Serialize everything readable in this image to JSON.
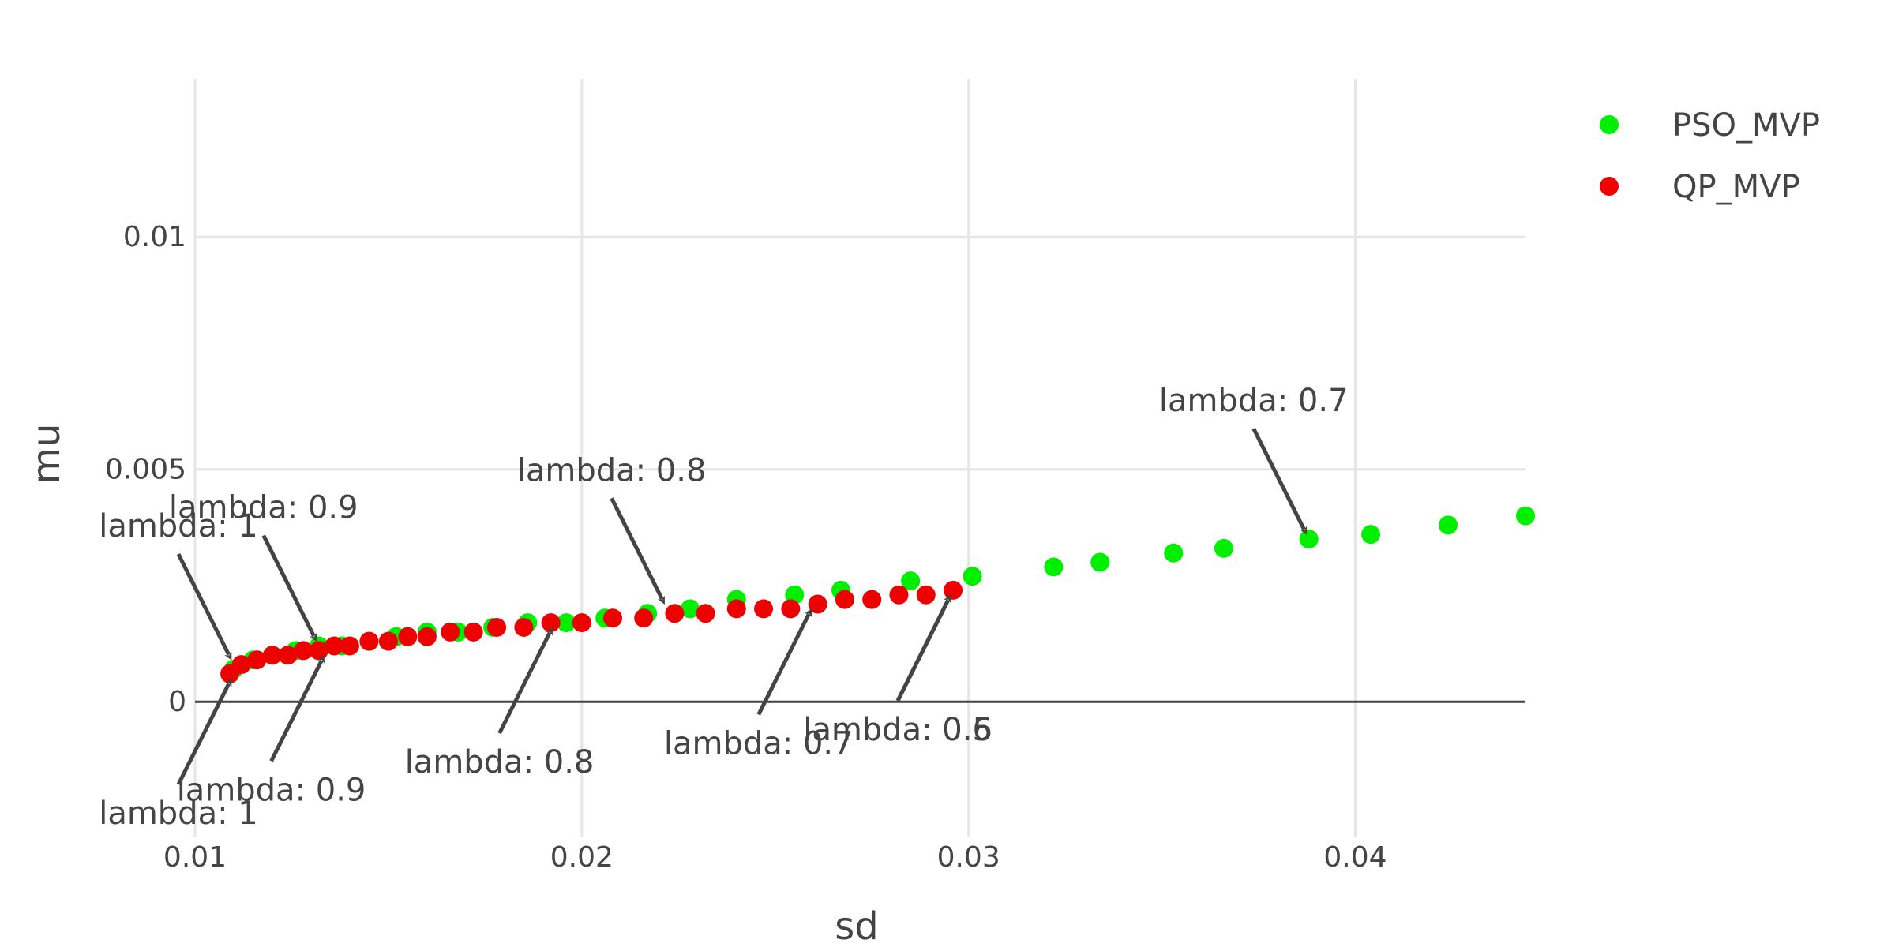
{
  "chart_data": {
    "type": "scatter",
    "xlabel": "sd",
    "ylabel": "mu",
    "xlim": [
      0.01,
      0.0444
    ],
    "ylim": [
      -0.0029,
      0.0134
    ],
    "x_ticks": [
      0.01,
      0.02,
      0.03,
      0.04
    ],
    "x_tick_labels": [
      "0.01",
      "0.02",
      "0.03",
      "0.04"
    ],
    "y_ticks": [
      0,
      0.005,
      0.01
    ],
    "y_tick_labels": [
      "0",
      "0.005",
      "0.01"
    ],
    "grid": true,
    "zero_line": true,
    "legend_position": "top-right",
    "series": [
      {
        "name": "PSO_MVP",
        "color": "#00ee00",
        "x": [
          0.011,
          0.0115,
          0.012,
          0.0126,
          0.0132,
          0.0138,
          0.0145,
          0.0152,
          0.016,
          0.0168,
          0.0177,
          0.0186,
          0.0196,
          0.0206,
          0.0217,
          0.0228,
          0.024,
          0.0255,
          0.0267,
          0.0285,
          0.0301,
          0.0322,
          0.0334,
          0.0353,
          0.0366,
          0.0388,
          0.0404,
          0.0424,
          0.0444
        ],
        "y": [
          0.0007,
          0.0009,
          0.001,
          0.0011,
          0.0012,
          0.0012,
          0.0013,
          0.0014,
          0.0015,
          0.0015,
          0.0016,
          0.0017,
          0.0017,
          0.0018,
          0.0019,
          0.002,
          0.0022,
          0.0023,
          0.0024,
          0.0026,
          0.0027,
          0.0029,
          0.003,
          0.0032,
          0.0033,
          0.0035,
          0.0036,
          0.0038,
          0.004
        ]
      },
      {
        "name": "QP_MVP",
        "color": "#ee0000",
        "x": [
          0.0109,
          0.0112,
          0.0116,
          0.012,
          0.0124,
          0.0128,
          0.0132,
          0.0136,
          0.014,
          0.0145,
          0.015,
          0.0155,
          0.016,
          0.0166,
          0.0172,
          0.0178,
          0.0185,
          0.0192,
          0.02,
          0.0208,
          0.0216,
          0.0224,
          0.0232,
          0.024,
          0.0247,
          0.0254,
          0.0261,
          0.0268,
          0.0275,
          0.0282,
          0.0289,
          0.0296
        ],
        "y": [
          0.0006,
          0.0008,
          0.0009,
          0.001,
          0.001,
          0.0011,
          0.0011,
          0.0012,
          0.0012,
          0.0013,
          0.0013,
          0.0014,
          0.0014,
          0.0015,
          0.0015,
          0.0016,
          0.0016,
          0.0017,
          0.0017,
          0.0018,
          0.0018,
          0.0019,
          0.0019,
          0.002,
          0.002,
          0.002,
          0.0021,
          0.0022,
          0.0022,
          0.0023,
          0.0023,
          0.0024
        ]
      }
    ],
    "annotations": [
      {
        "text": "lambda: 1",
        "x": 0.011,
        "y": 0.0008,
        "direction": "above"
      },
      {
        "text": "lambda: 0.9",
        "x": 0.0132,
        "y": 0.0012,
        "direction": "above"
      },
      {
        "text": "lambda: 0.8",
        "x": 0.0222,
        "y": 0.002,
        "direction": "above"
      },
      {
        "text": "lambda: 0.7",
        "x": 0.0388,
        "y": 0.0035,
        "direction": "above"
      },
      {
        "text": "lambda: 1",
        "x": 0.011,
        "y": 0.0006,
        "direction": "below"
      },
      {
        "text": "lambda: 0.9",
        "x": 0.0134,
        "y": 0.0011,
        "direction": "below"
      },
      {
        "text": "lambda: 0.8",
        "x": 0.0193,
        "y": 0.0017,
        "direction": "below"
      },
      {
        "text": "lambda: 0.7",
        "x": 0.026,
        "y": 0.0021,
        "direction": "below"
      },
      {
        "text": "lambda: 0.5",
        "x": 0.0296,
        "y": 0.0024,
        "direction": "below"
      },
      {
        "text": "lambda: 0.6",
        "x": 0.0296,
        "y": 0.0024,
        "direction": "below"
      }
    ]
  }
}
